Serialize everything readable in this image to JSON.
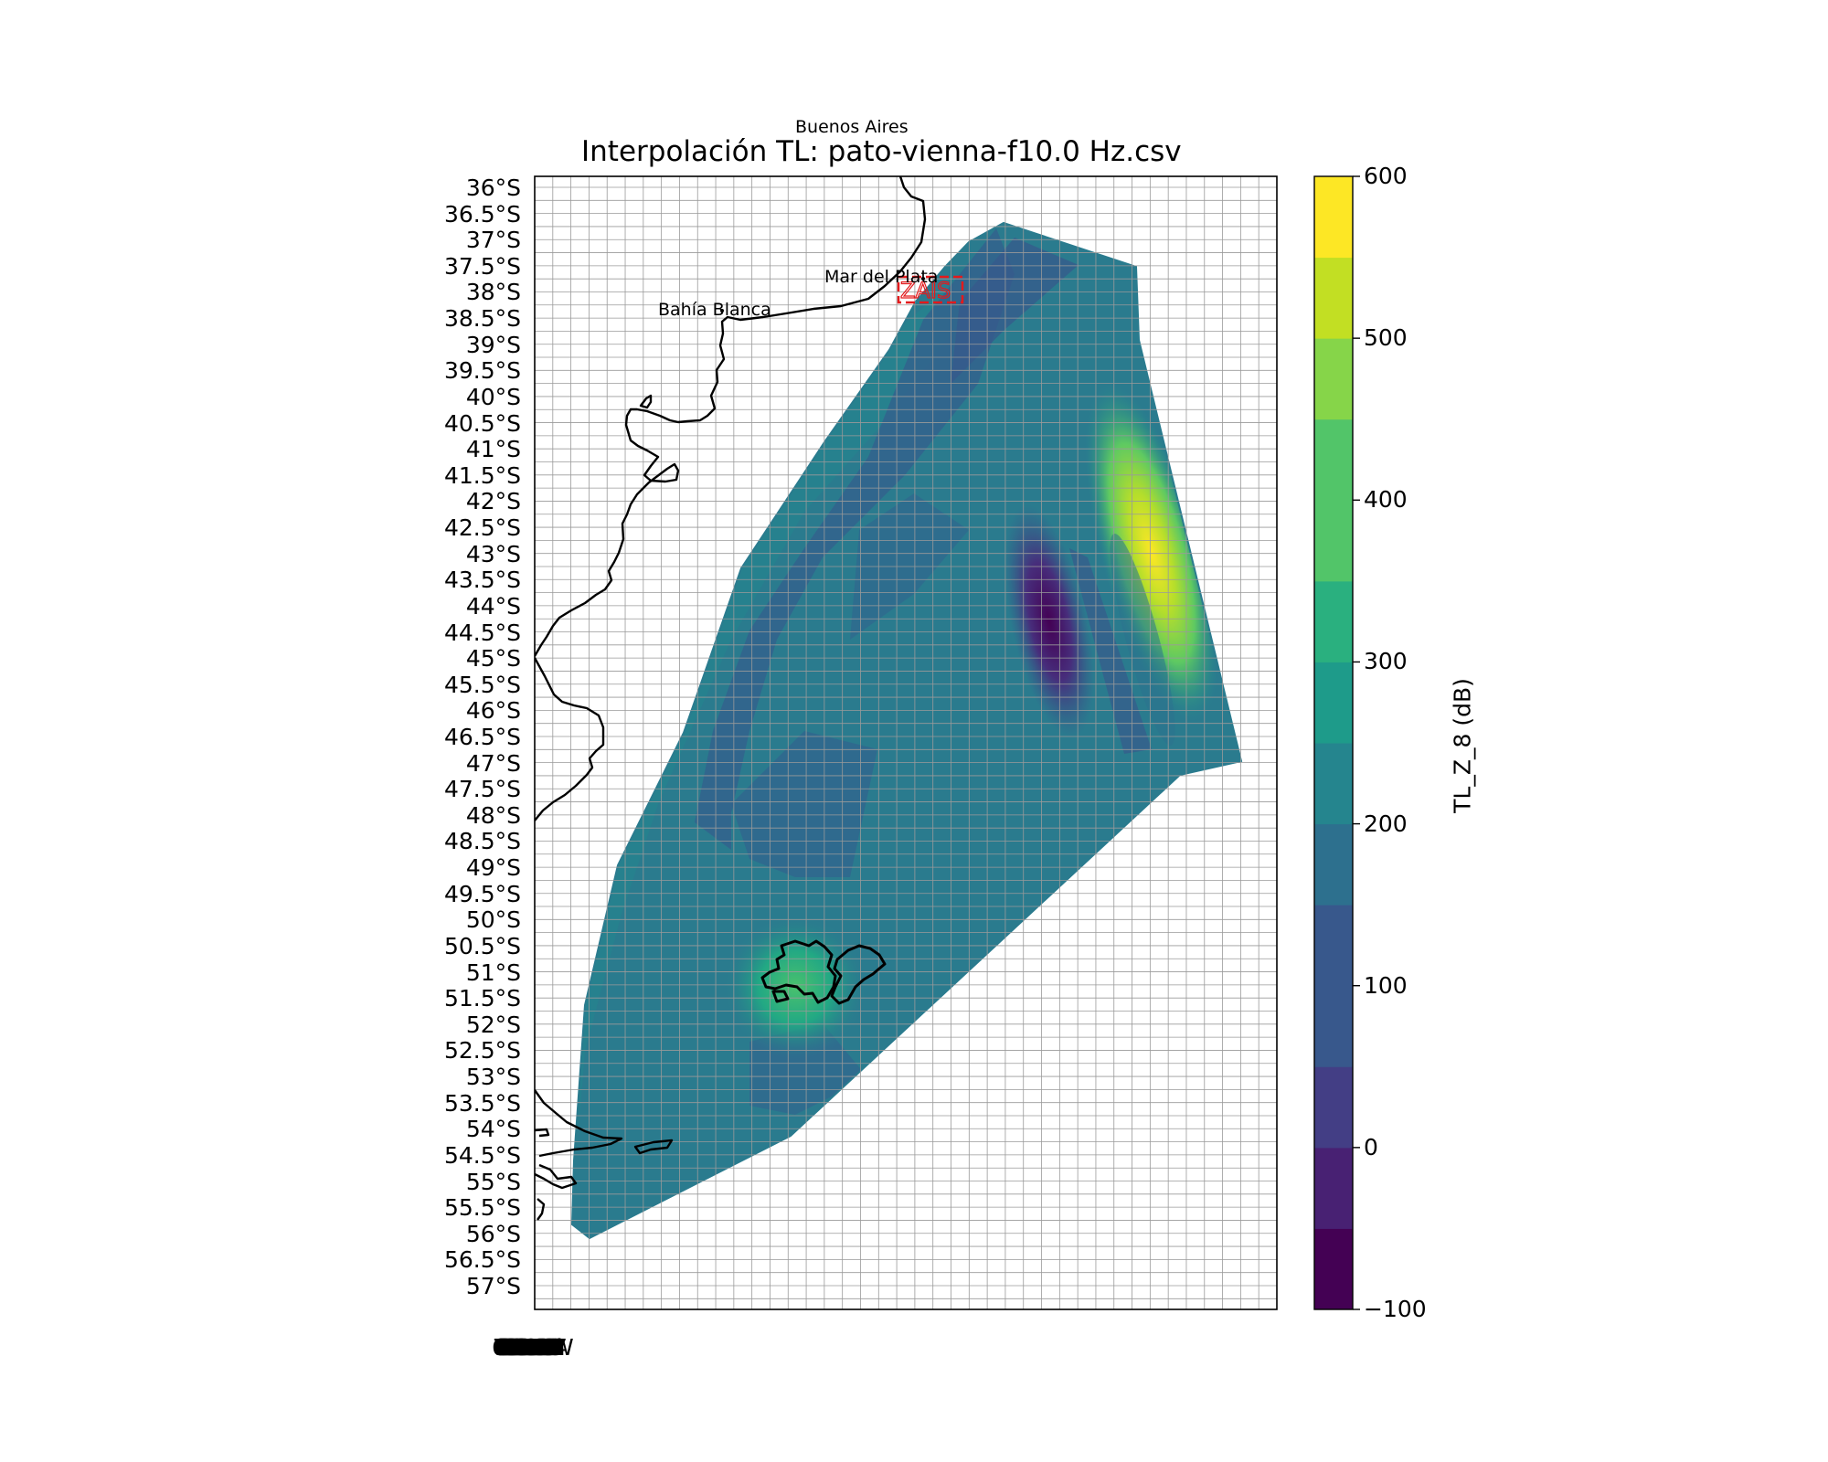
{
  "figure": {
    "supertitle": "Buenos Aires",
    "title": "Interpolación TL: pato-vienna-f10.0 Hz.csv"
  },
  "map": {
    "lat_labels": [
      "36°S",
      "36.5°S",
      "37°S",
      "37.5°S",
      "38°S",
      "38.5°S",
      "39°S",
      "39.5°S",
      "40°S",
      "40.5°S",
      "41°S",
      "41.5°S",
      "42°S",
      "42.5°S",
      "43°S",
      "43.5°S",
      "44°S",
      "44.5°S",
      "45°S",
      "45.5°S",
      "46°S",
      "46.5°S",
      "47°S",
      "47.5°S",
      "48°S",
      "48.5°S",
      "49°S",
      "49.5°S",
      "50°S",
      "50.5°S",
      "51°S",
      "51.5°S",
      "52°S",
      "52.5°S",
      "53°S",
      "53.5°S",
      "54°S",
      "54.5°S",
      "55°S",
      "55.5°S",
      "56°S",
      "56.5°S",
      "57°S"
    ],
    "lon_labels_overlapping": "676869686968676666666565656462616060595959575756565555555454545353535252515050494949484848474747°W",
    "cities": {
      "mar_del_plata": "Mar del Plata",
      "bahia_blanca": "Bahía Blanca"
    },
    "box_label": "ZAIS",
    "box_color": "#e31a1c",
    "grid_on": true,
    "coastline_color": "#000000"
  },
  "colorbar": {
    "label": "TL_Z_8 (dB)",
    "ticks": [
      "600",
      "500",
      "400",
      "300",
      "200",
      "100",
      "0",
      "−100"
    ],
    "range": [
      -100,
      600
    ],
    "level_step": 50,
    "colormap": "viridis"
  },
  "field_colors": {
    "dominant": "#2a7a8e",
    "low": "#34608d",
    "min": "#462f7b",
    "max": "#e2e419",
    "high": "#7ad151"
  }
}
